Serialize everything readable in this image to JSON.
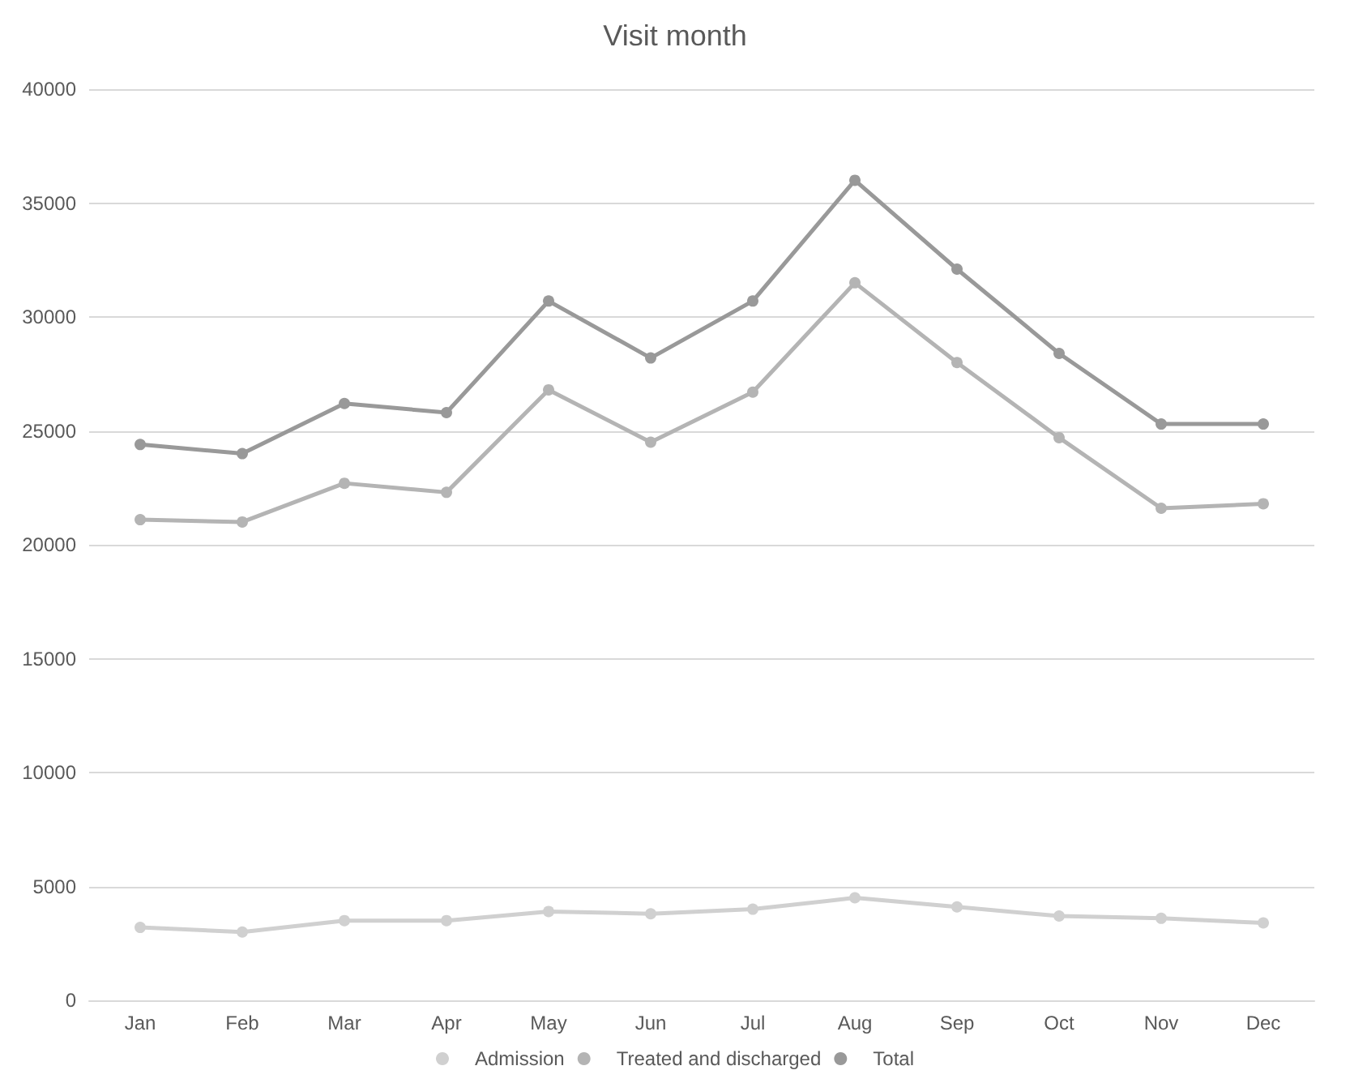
{
  "chart_data": {
    "type": "line",
    "title": "Visit month",
    "categories": [
      "Jan",
      "Feb",
      "Mar",
      "Apr",
      "May",
      "Jun",
      "Jul",
      "Aug",
      "Sep",
      "Oct",
      "Nov",
      "Dec"
    ],
    "series": [
      {
        "name": "Admission",
        "color": "#d0d0d0",
        "values": [
          3200,
          3000,
          3500,
          3500,
          3900,
          3800,
          4000,
          4500,
          4100,
          3700,
          3600,
          3400
        ]
      },
      {
        "name": "Treated and discharged",
        "color": "#b4b4b4",
        "values": [
          21100,
          21000,
          22700,
          22300,
          26800,
          24500,
          26700,
          31500,
          28000,
          24700,
          21600,
          21800
        ]
      },
      {
        "name": "Total",
        "color": "#999999",
        "values": [
          24400,
          24000,
          26200,
          25800,
          30700,
          28200,
          30700,
          36000,
          32100,
          28400,
          25300,
          25300
        ]
      }
    ],
    "ylim": [
      0,
      40000
    ],
    "yticks": [
      0,
      5000,
      10000,
      15000,
      20000,
      25000,
      30000,
      35000,
      40000
    ],
    "grid": "y",
    "legend": "bottom",
    "marker": "circle",
    "line_style": "solid"
  }
}
